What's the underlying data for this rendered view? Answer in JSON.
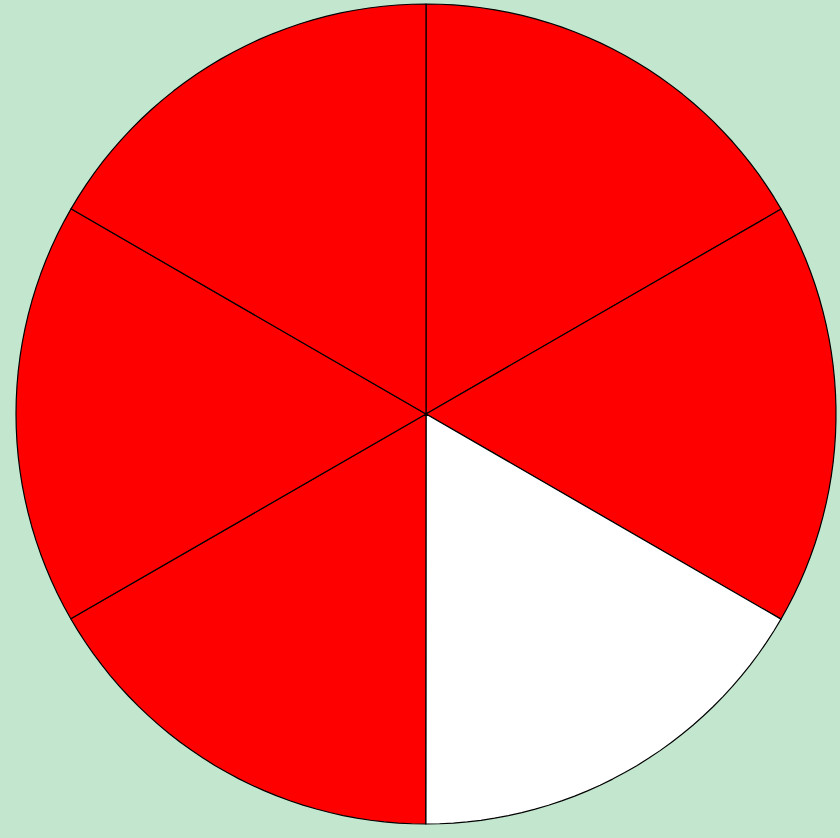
{
  "chart_data": {
    "type": "pie",
    "categories": [
      null,
      null,
      null,
      null,
      null,
      null
    ],
    "values": [
      16.67,
      16.67,
      16.67,
      16.67,
      16.66,
      16.66
    ],
    "colors": [
      "#ff0000",
      "#ff0000",
      "#ffffff",
      "#ff0000",
      "#ff0000",
      "#ff0000"
    ]
  }
}
